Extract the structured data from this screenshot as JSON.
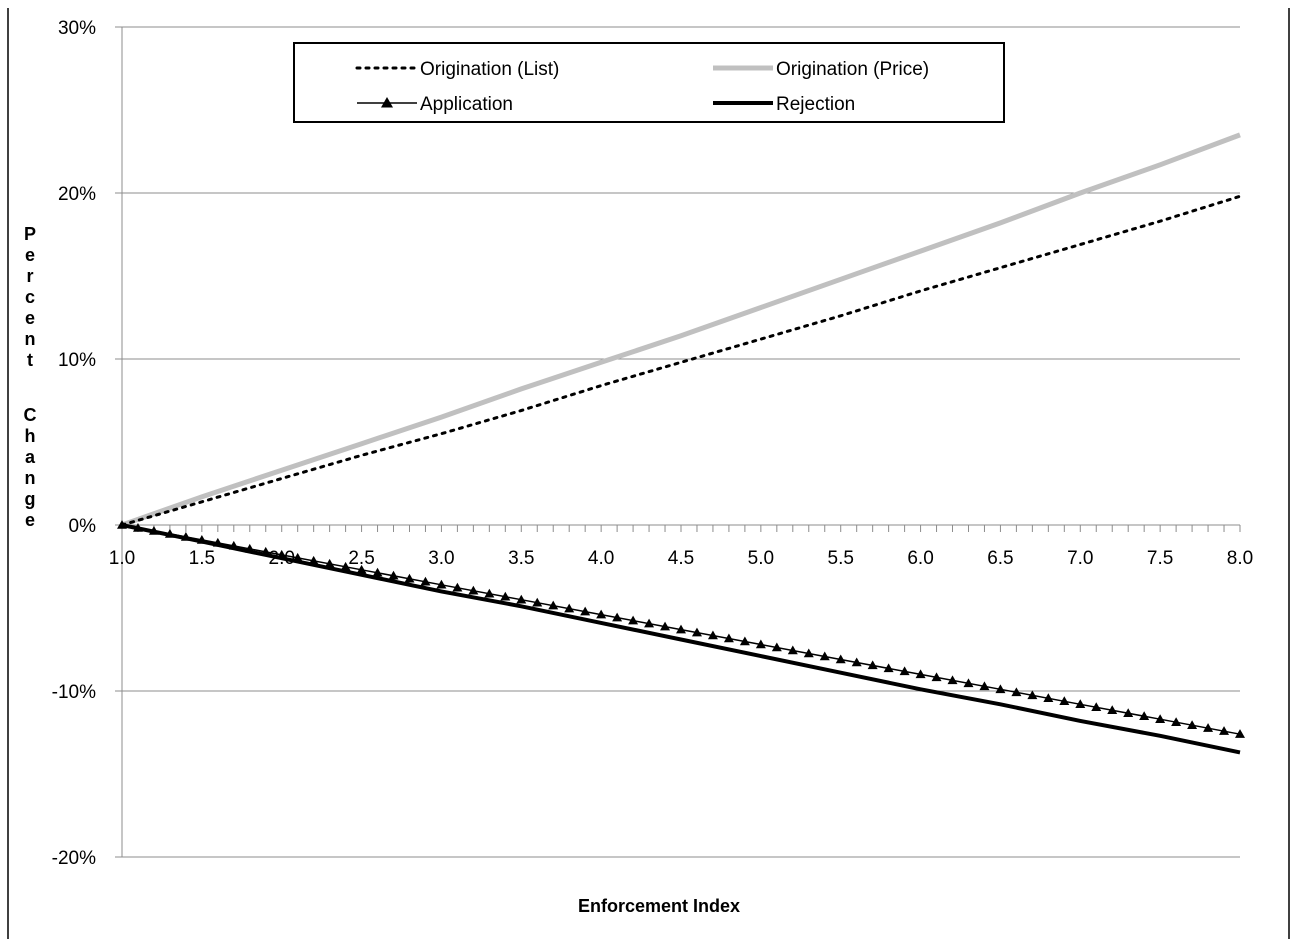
{
  "chart_data": {
    "type": "line",
    "title": "",
    "xlabel": "Enforcement Index",
    "ylabel": "Percent Change",
    "xlim": [
      1.0,
      8.0
    ],
    "ylim": [
      -0.2,
      0.3
    ],
    "x_ticks": [
      "1.0",
      "1.5",
      "2.0",
      "2.5",
      "3.0",
      "3.5",
      "4.0",
      "4.5",
      "5.0",
      "5.5",
      "6.0",
      "6.5",
      "7.0",
      "7.5",
      "8.0"
    ],
    "y_ticks": [
      "30%",
      "20%",
      "10%",
      "0%",
      "-10%",
      "-20%"
    ],
    "y_tick_values": [
      0.3,
      0.2,
      0.1,
      0.0,
      -0.1,
      -0.2
    ],
    "grid": true,
    "legend_position": "top-center",
    "x": [
      1.0,
      1.5,
      2.0,
      2.5,
      3.0,
      3.5,
      4.0,
      4.5,
      5.0,
      5.5,
      6.0,
      6.5,
      7.0,
      7.5,
      8.0
    ],
    "series": [
      {
        "name": "Origination (List)",
        "style": "dotted",
        "color": "#000000",
        "values": [
          0.0,
          0.014,
          0.028,
          0.042,
          0.055,
          0.069,
          0.084,
          0.098,
          0.112,
          0.126,
          0.141,
          0.155,
          0.169,
          0.183,
          0.198
        ]
      },
      {
        "name": "Origination (Price)",
        "style": "solid",
        "color": "#c0c0c0",
        "values": [
          0.0,
          0.017,
          0.033,
          0.049,
          0.065,
          0.082,
          0.098,
          0.114,
          0.131,
          0.148,
          0.165,
          0.182,
          0.2,
          0.217,
          0.235
        ]
      },
      {
        "name": "Application",
        "style": "triangle-markers",
        "color": "#000000",
        "values": [
          0.0,
          -0.009,
          -0.018,
          -0.027,
          -0.036,
          -0.045,
          -0.054,
          -0.063,
          -0.072,
          -0.081,
          -0.09,
          -0.099,
          -0.108,
          -0.117,
          -0.126
        ]
      },
      {
        "name": "Rejection",
        "style": "solid",
        "color": "#000000",
        "values": [
          0.0,
          -0.01,
          -0.02,
          -0.03,
          -0.04,
          -0.049,
          -0.059,
          -0.069,
          -0.079,
          -0.089,
          -0.099,
          -0.108,
          -0.118,
          -0.127,
          -0.137
        ]
      }
    ]
  }
}
